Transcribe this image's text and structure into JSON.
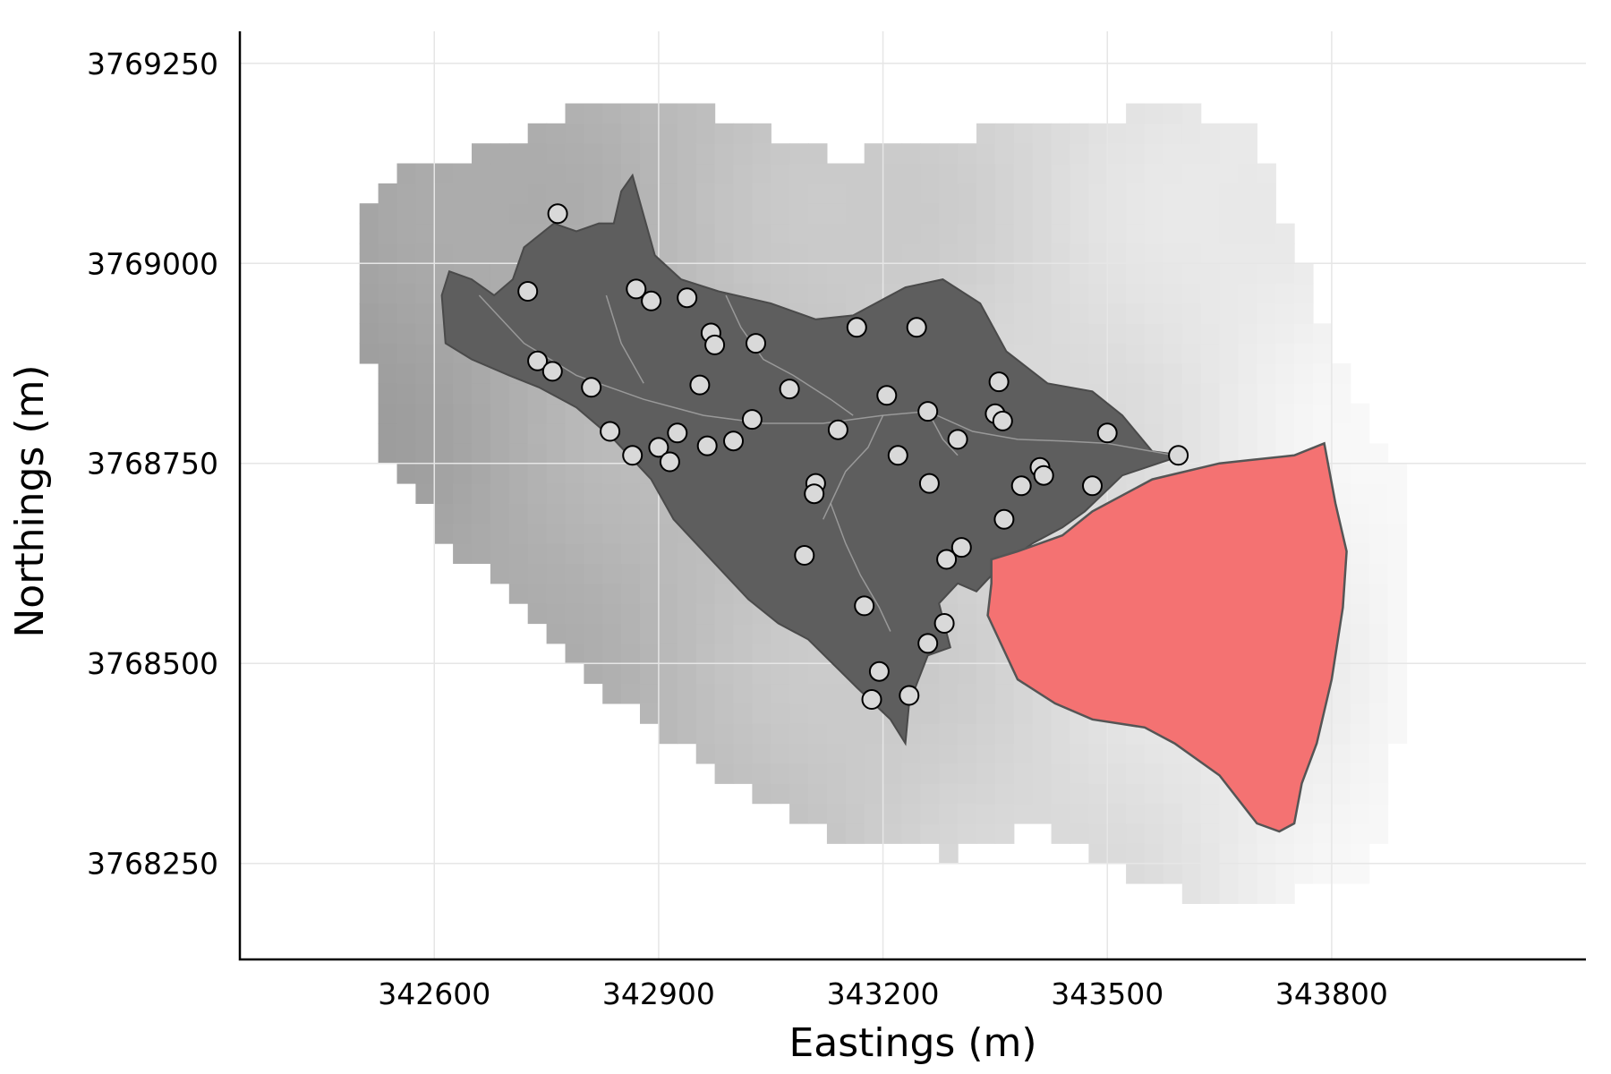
{
  "chart_data": {
    "type": "scatter",
    "xlabel": "Eastings (m)",
    "ylabel": "Northings (m)",
    "xlim": [
      342340,
      344140
    ],
    "ylim": [
      3768130,
      3769290
    ],
    "x_ticks": [
      342600,
      342900,
      343200,
      343500,
      343800
    ],
    "y_ticks": [
      3768250,
      3768500,
      3768750,
      3769000,
      3769250
    ],
    "grid": true,
    "legend": "none",
    "colors": {
      "catchment": "#5e5e5e",
      "highlight_zone": "#f47272",
      "points": "#d9d9d9",
      "raster_dark": "#a0a0a0",
      "raster_light": "#f5f5f5"
    },
    "catchment_polygon": [
      [
        342610,
        3768960
      ],
      [
        342620,
        3768990
      ],
      [
        342650,
        3768980
      ],
      [
        342680,
        3768960
      ],
      [
        342705,
        3768980
      ],
      [
        342720,
        3769020
      ],
      [
        342760,
        3769050
      ],
      [
        342790,
        3769040
      ],
      [
        342820,
        3769050
      ],
      [
        342840,
        3769050
      ],
      [
        342850,
        3769090
      ],
      [
        342865,
        3769110
      ],
      [
        342880,
        3769060
      ],
      [
        342895,
        3769010
      ],
      [
        342930,
        3768980
      ],
      [
        342980,
        3768965
      ],
      [
        343050,
        3768950
      ],
      [
        343110,
        3768930
      ],
      [
        343160,
        3768935
      ],
      [
        343230,
        3768970
      ],
      [
        343280,
        3768980
      ],
      [
        343330,
        3768950
      ],
      [
        343365,
        3768890
      ],
      [
        343420,
        3768850
      ],
      [
        343480,
        3768840
      ],
      [
        343520,
        3768810
      ],
      [
        343560,
        3768765
      ],
      [
        343600,
        3768760
      ],
      [
        343520,
        3768735
      ],
      [
        343470,
        3768690
      ],
      [
        343440,
        3768670
      ],
      [
        343400,
        3768650
      ],
      [
        343355,
        3768620
      ],
      [
        343325,
        3768590
      ],
      [
        343300,
        3768600
      ],
      [
        343275,
        3768575
      ],
      [
        343290,
        3768520
      ],
      [
        343260,
        3768510
      ],
      [
        343235,
        3768450
      ],
      [
        343230,
        3768400
      ],
      [
        343210,
        3768430
      ],
      [
        343165,
        3768470
      ],
      [
        343100,
        3768530
      ],
      [
        343060,
        3768550
      ],
      [
        343020,
        3768580
      ],
      [
        342960,
        3768640
      ],
      [
        342920,
        3768680
      ],
      [
        342890,
        3768730
      ],
      [
        342840,
        3768780
      ],
      [
        342790,
        3768820
      ],
      [
        342740,
        3768845
      ],
      [
        342700,
        3768860
      ],
      [
        342650,
        3768880
      ],
      [
        342615,
        3768900
      ]
    ],
    "highlight_polygon": [
      [
        343345,
        3768630
      ],
      [
        343380,
        3768640
      ],
      [
        343440,
        3768660
      ],
      [
        343480,
        3768690
      ],
      [
        343560,
        3768730
      ],
      [
        343650,
        3768750
      ],
      [
        343750,
        3768760
      ],
      [
        343790,
        3768775
      ],
      [
        343805,
        3768700
      ],
      [
        343820,
        3768640
      ],
      [
        343815,
        3768570
      ],
      [
        343800,
        3768480
      ],
      [
        343780,
        3768400
      ],
      [
        343760,
        3768350
      ],
      [
        343750,
        3768300
      ],
      [
        343730,
        3768290
      ],
      [
        343700,
        3768300
      ],
      [
        343650,
        3768360
      ],
      [
        343590,
        3768400
      ],
      [
        343550,
        3768420
      ],
      [
        343480,
        3768430
      ],
      [
        343430,
        3768450
      ],
      [
        343380,
        3768480
      ],
      [
        343360,
        3768520
      ],
      [
        343340,
        3768560
      ],
      [
        343345,
        3768600
      ]
    ],
    "points": [
      [
        342765,
        3769062
      ],
      [
        342725,
        3768965
      ],
      [
        342870,
        3768968
      ],
      [
        342890,
        3768953
      ],
      [
        342938,
        3768957
      ],
      [
        342970,
        3768913
      ],
      [
        342975,
        3768898
      ],
      [
        343030,
        3768900
      ],
      [
        342738,
        3768878
      ],
      [
        342758,
        3768865
      ],
      [
        342810,
        3768845
      ],
      [
        342955,
        3768848
      ],
      [
        343075,
        3768843
      ],
      [
        343165,
        3768920
      ],
      [
        343245,
        3768920
      ],
      [
        343205,
        3768835
      ],
      [
        343260,
        3768815
      ],
      [
        343350,
        3768812
      ],
      [
        343355,
        3768852
      ],
      [
        343360,
        3768803
      ],
      [
        342835,
        3768790
      ],
      [
        342925,
        3768788
      ],
      [
        343025,
        3768805
      ],
      [
        343140,
        3768792
      ],
      [
        343300,
        3768780
      ],
      [
        343500,
        3768788
      ],
      [
        343595,
        3768760
      ],
      [
        342900,
        3768770
      ],
      [
        342965,
        3768772
      ],
      [
        343000,
        3768778
      ],
      [
        342865,
        3768760
      ],
      [
        342915,
        3768752
      ],
      [
        343220,
        3768760
      ],
      [
        343410,
        3768745
      ],
      [
        343415,
        3768735
      ],
      [
        343385,
        3768722
      ],
      [
        343480,
        3768722
      ],
      [
        343110,
        3768725
      ],
      [
        343108,
        3768712
      ],
      [
        343262,
        3768725
      ],
      [
        343362,
        3768680
      ],
      [
        343305,
        3768645
      ],
      [
        343285,
        3768630
      ],
      [
        343095,
        3768635
      ],
      [
        343175,
        3768572
      ],
      [
        343282,
        3768550
      ],
      [
        343260,
        3768525
      ],
      [
        343195,
        3768490
      ],
      [
        343185,
        3768455
      ],
      [
        343235,
        3768460
      ]
    ],
    "streams": [
      [
        [
          342660,
          3768960
        ],
        [
          342720,
          3768900
        ],
        [
          342790,
          3768860
        ],
        [
          342880,
          3768830
        ],
        [
          342960,
          3768810
        ],
        [
          343040,
          3768800
        ],
        [
          343120,
          3768800
        ],
        [
          343200,
          3768810
        ],
        [
          343260,
          3768815
        ],
        [
          343320,
          3768790
        ],
        [
          343380,
          3768780
        ],
        [
          343440,
          3768778
        ],
        [
          343500,
          3768775
        ],
        [
          343590,
          3768760
        ]
      ],
      [
        [
          342990,
          3768960
        ],
        [
          343010,
          3768920
        ],
        [
          343040,
          3768880
        ],
        [
          343080,
          3768860
        ],
        [
          343130,
          3768830
        ],
        [
          343160,
          3768810
        ]
      ],
      [
        [
          343200,
          3768810
        ],
        [
          343180,
          3768770
        ],
        [
          343150,
          3768740
        ],
        [
          343130,
          3768700
        ],
        [
          343120,
          3768680
        ]
      ],
      [
        [
          343130,
          3768700
        ],
        [
          343150,
          3768650
        ],
        [
          343170,
          3768610
        ],
        [
          343195,
          3768570
        ],
        [
          343210,
          3768540
        ]
      ],
      [
        [
          343260,
          3768815
        ],
        [
          343280,
          3768780
        ],
        [
          343300,
          3768760
        ]
      ],
      [
        [
          342830,
          3768960
        ],
        [
          342850,
          3768900
        ],
        [
          342880,
          3768850
        ]
      ]
    ]
  }
}
